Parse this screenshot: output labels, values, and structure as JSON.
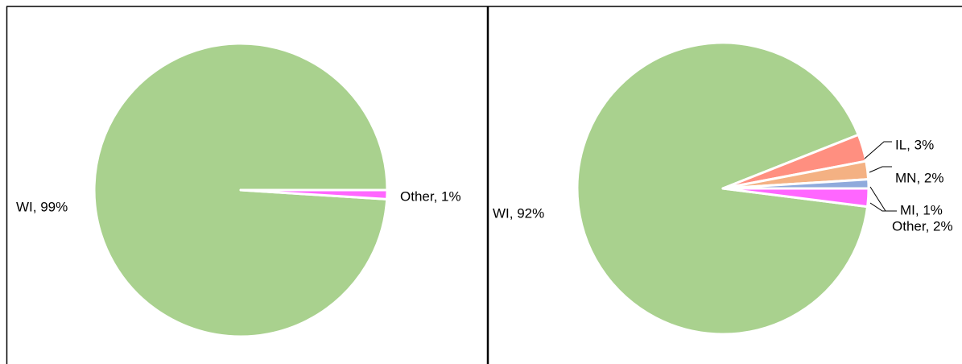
{
  "chart_data": [
    {
      "type": "pie",
      "categories": [
        "WI",
        "Other"
      ],
      "values": [
        99,
        1
      ],
      "value_labels": [
        "WI, 99%",
        "Other, 1%"
      ],
      "colors": [
        "#a9d18e",
        "#ff66ff"
      ]
    },
    {
      "type": "pie",
      "categories": [
        "WI",
        "IL",
        "MN",
        "MI",
        "Other"
      ],
      "values": [
        92,
        3,
        2,
        1,
        2
      ],
      "value_labels": [
        "WI, 92%",
        "IL, 3%",
        "MN, 2%",
        "MI, 1%",
        "Other, 2%"
      ],
      "colors": [
        "#a9d18e",
        "#ff8f80",
        "#f4b183",
        "#8faadc",
        "#ff66ff"
      ]
    }
  ]
}
